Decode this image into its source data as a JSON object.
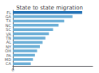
{
  "chart_data": {
    "type": "bar",
    "orientation": "horizontal",
    "title": "State to state migration",
    "categories": [
      "FL",
      "GA",
      "TX",
      "NC",
      "SC",
      "VA",
      "TN",
      "AL",
      "NY",
      "OH",
      "PA",
      "MD",
      "CA"
    ],
    "values": [
      1.0,
      0.86,
      0.74,
      0.66,
      0.58,
      0.52,
      0.47,
      0.43,
      0.39,
      0.35,
      0.32,
      0.29,
      0.26
    ],
    "colors": [
      "#2171b5",
      "#6baed6",
      "#6baed6",
      "#6baed6",
      "#6baed6",
      "#6baed6",
      "#6baed6",
      "#6baed6",
      "#6baed6",
      "#6baed6",
      "#6baed6",
      "#6baed6",
      "#6baed6"
    ],
    "xlim": [
      0,
      1.15
    ],
    "xticks": [
      0
    ],
    "grid": false
  }
}
